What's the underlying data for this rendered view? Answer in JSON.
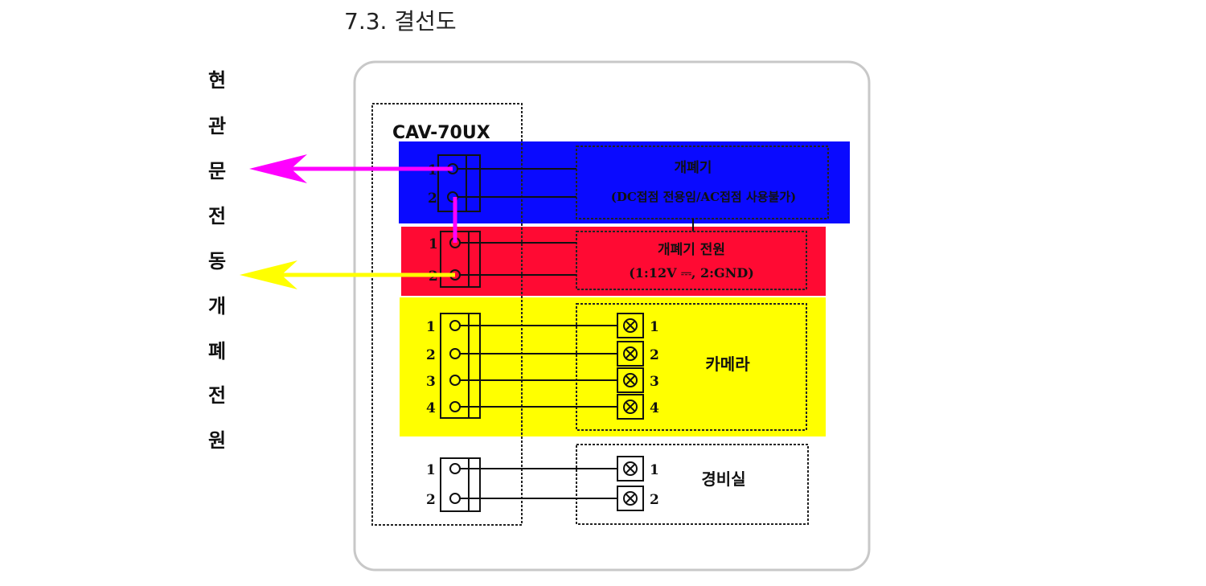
{
  "title": "7.3. 결선도",
  "side_label": [
    "현",
    "관",
    "문",
    "전",
    "동",
    "개",
    "폐",
    "전",
    "원"
  ],
  "device": "CAV-70UX",
  "colors": {
    "blue": "#0a0aff",
    "red": "#ff0a33",
    "yellow": "#ffff00",
    "magenta": "#ff00ff",
    "arrow_yellow": "#ffff00"
  },
  "sections": {
    "opener": {
      "pins": [
        "1",
        "2"
      ],
      "line1": "개폐기",
      "line2": "(DC접점 전용임/AC접점 사용불가)"
    },
    "opener_power": {
      "pins": [
        "1",
        "2"
      ],
      "line1": "개폐기 전원",
      "line2": "(1:12V ⎓, 2:GND)"
    },
    "camera": {
      "pins": [
        "1",
        "2",
        "3",
        "4"
      ],
      "terminals": [
        "1",
        "2",
        "3",
        "4"
      ],
      "label": "카메라"
    },
    "guard_room": {
      "pins": [
        "1",
        "2"
      ],
      "terminals": [
        "1",
        "2"
      ],
      "label": "경비실"
    }
  }
}
